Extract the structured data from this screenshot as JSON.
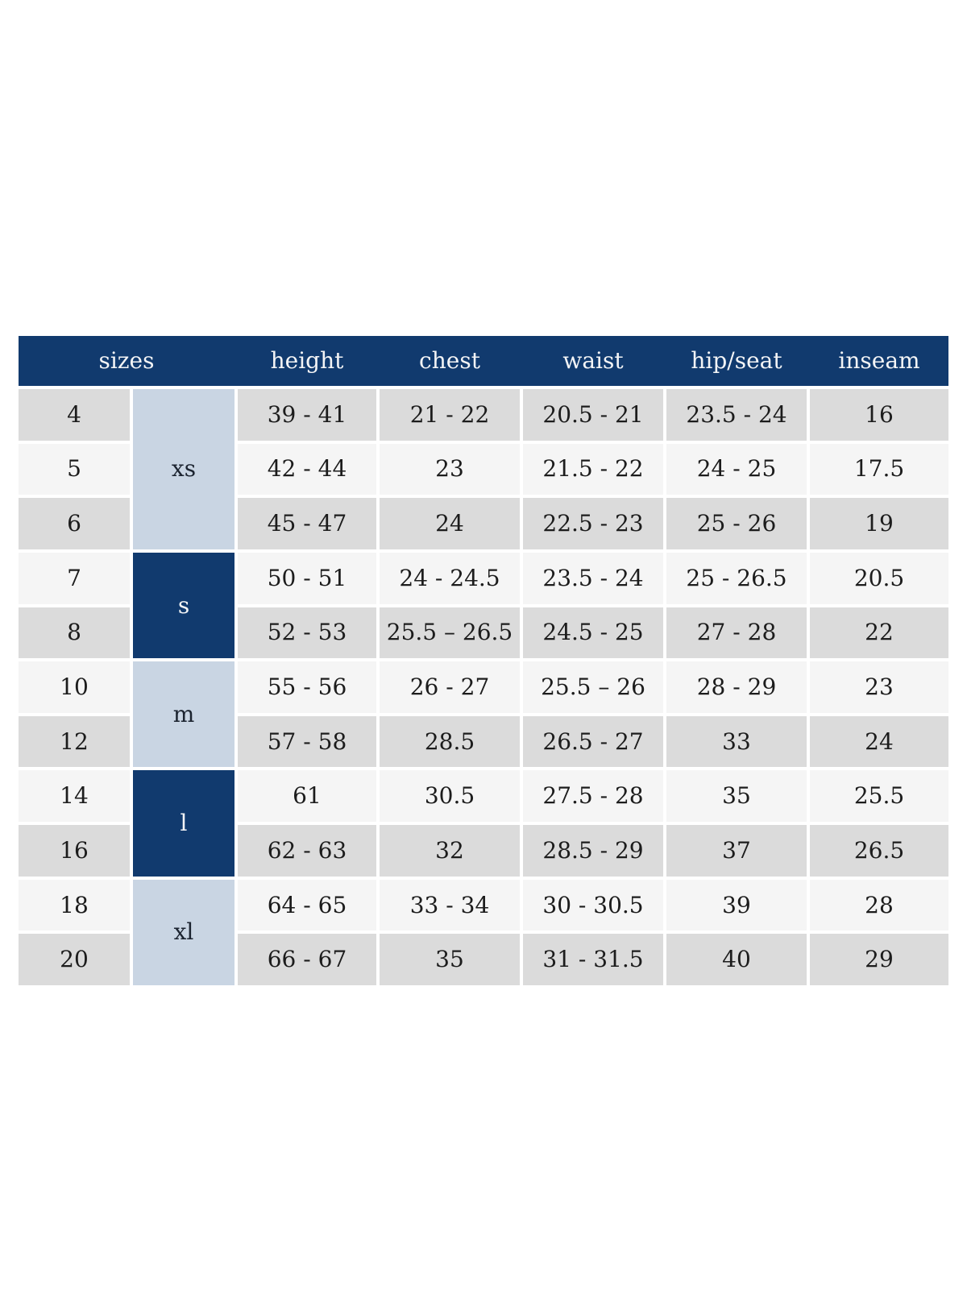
{
  "table": {
    "header": {
      "sizes": "sizes",
      "height": "height",
      "chest": "chest",
      "waist": "waist",
      "hip_seat": "hip/seat",
      "inseam": "inseam"
    },
    "groups": [
      {
        "label": "xs",
        "rows_spanned": 3,
        "variant": "light"
      },
      {
        "label": "s",
        "rows_spanned": 2,
        "variant": "dark"
      },
      {
        "label": "m",
        "rows_spanned": 2,
        "variant": "light"
      },
      {
        "label": "l",
        "rows_spanned": 2,
        "variant": "dark"
      },
      {
        "label": "xl",
        "rows_spanned": 2,
        "variant": "light"
      }
    ],
    "rows": [
      {
        "size": "4",
        "height": "39 - 41",
        "chest": "21 - 22",
        "waist": "20.5 - 21",
        "hip_seat": "23.5 - 24",
        "inseam": "16"
      },
      {
        "size": "5",
        "height": "42 - 44",
        "chest": "23",
        "waist": "21.5 - 22",
        "hip_seat": "24 - 25",
        "inseam": "17.5"
      },
      {
        "size": "6",
        "height": "45 - 47",
        "chest": "24",
        "waist": "22.5 - 23",
        "hip_seat": "25 - 26",
        "inseam": "19"
      },
      {
        "size": "7",
        "height": "50 - 51",
        "chest": "24 - 24.5",
        "waist": "23.5 - 24",
        "hip_seat": "25 - 26.5",
        "inseam": "20.5"
      },
      {
        "size": "8",
        "height": "52 - 53",
        "chest": "25.5 – 26.5",
        "waist": "24.5 - 25",
        "hip_seat": "27 - 28",
        "inseam": "22"
      },
      {
        "size": "10",
        "height": "55 - 56",
        "chest": "26 - 27",
        "waist": "25.5 – 26",
        "hip_seat": "28 - 29",
        "inseam": "23"
      },
      {
        "size": "12",
        "height": "57 - 58",
        "chest": "28.5",
        "waist": "26.5 - 27",
        "hip_seat": "33",
        "inseam": "24"
      },
      {
        "size": "14",
        "height": "61",
        "chest": "30.5",
        "waist": "27.5 - 28",
        "hip_seat": "35",
        "inseam": "25.5"
      },
      {
        "size": "16",
        "height": "62 - 63",
        "chest": "32",
        "waist": "28.5 - 29",
        "hip_seat": "37",
        "inseam": "26.5"
      },
      {
        "size": "18",
        "height": "64 - 65",
        "chest": "33 - 34",
        "waist": "30 - 30.5",
        "hip_seat": "39",
        "inseam": "28"
      },
      {
        "size": "20",
        "height": "66 - 67",
        "chest": "35",
        "waist": "31 - 31.5",
        "hip_seat": "40",
        "inseam": "29"
      }
    ],
    "colors": {
      "header_bg": "#113a6e",
      "header_text": "#f3f4f6",
      "group_light_bg": "#c9d5e3",
      "row_gray": "#dbdbdb",
      "row_light": "#f5f5f5",
      "data_text": "#1c1c1c"
    }
  }
}
